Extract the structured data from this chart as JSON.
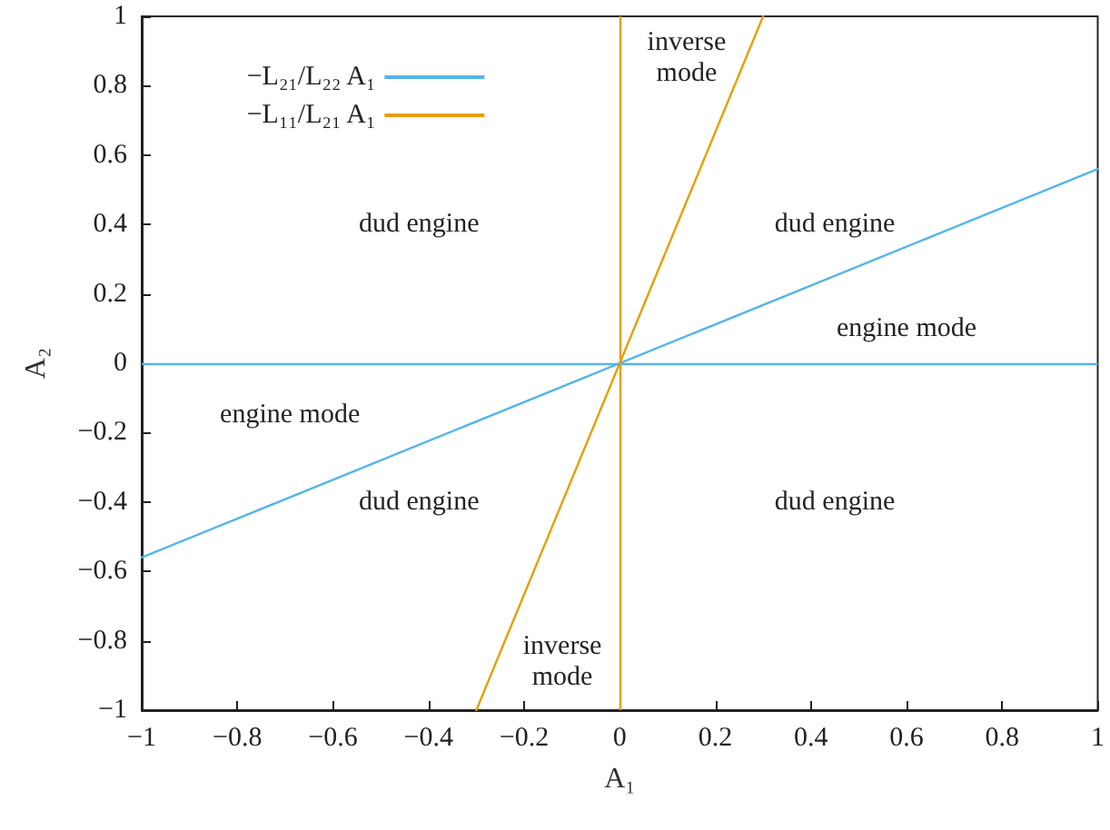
{
  "chart_data": {
    "type": "line",
    "xlabel": "A₁",
    "ylabel": "A₂",
    "xlim": [
      -1,
      1
    ],
    "ylim": [
      -1,
      1
    ],
    "xticks": [
      -1,
      -0.8,
      -0.6,
      -0.4,
      -0.2,
      0,
      0.2,
      0.4,
      0.6,
      0.8,
      1
    ],
    "yticks": [
      -1,
      -0.8,
      -0.6,
      -0.4,
      -0.2,
      0,
      0.2,
      0.4,
      0.6,
      0.8,
      1
    ],
    "grid": false,
    "legend": "top left",
    "marker": "none",
    "line_style": "solid",
    "series": [
      {
        "name": "−L₂₁/L₂₂ A₁",
        "color": "#56b4e9",
        "x": [
          -1,
          1
        ],
        "values": [
          -0.56,
          0.56
        ]
      },
      {
        "name": "−L₁₁/L₂₁ A₁",
        "color": "#e69f00",
        "x": [
          -0.3,
          0.3
        ],
        "values": [
          -1,
          1
        ]
      }
    ],
    "ref_lines": [
      {
        "axis": "y",
        "value": 0,
        "color": "#56b4e9",
        "line_style": "solid"
      },
      {
        "axis": "x",
        "value": 0,
        "color": "#e69f00",
        "line_style": "solid"
      }
    ],
    "annotations": [
      "inverse\nmode",
      "dud engine",
      "dud engine",
      "engine mode",
      "engine mode",
      "dud engine",
      "dud engine",
      "inverse\nmode"
    ]
  }
}
